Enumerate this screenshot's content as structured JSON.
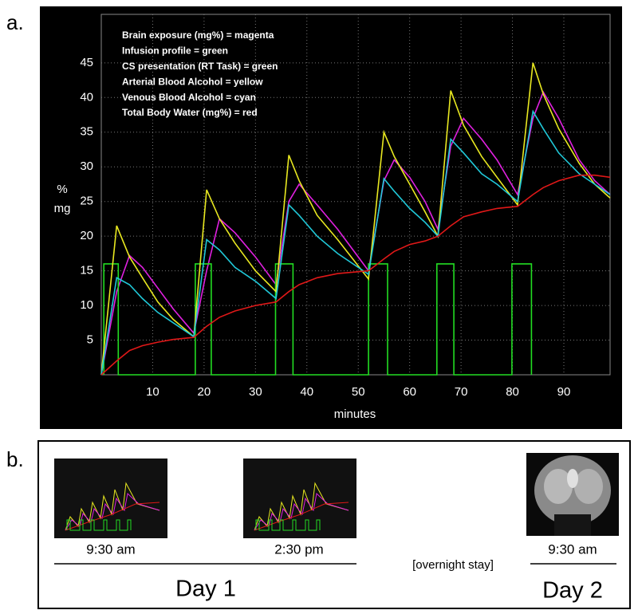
{
  "panel_a_label": "a.",
  "chart_data": {
    "type": "line",
    "xlabel": "minutes",
    "ylabel": [
      "%",
      "mg"
    ],
    "annotations": [
      "Infusion profile = green"
    ],
    "x": [
      0,
      3,
      5.5,
      8,
      11,
      14,
      18,
      20.5,
      23,
      26,
      30,
      34,
      36.5,
      38.5,
      42,
      46,
      52,
      55,
      57,
      60,
      63,
      65.5,
      68,
      70.5,
      74,
      77,
      81,
      84,
      86,
      89,
      93,
      96,
      99
    ],
    "series": [
      {
        "name": "Brain exposure (mg%) = magenta",
        "color": "#e020e0",
        "values": [
          0,
          12,
          17.2,
          15.5,
          12.5,
          9.5,
          6,
          15,
          22.5,
          20.5,
          17,
          13,
          25,
          27.5,
          24.5,
          21,
          15,
          28,
          31,
          28.5,
          25,
          21,
          33,
          37,
          34,
          31,
          26,
          37,
          40.8,
          37,
          31,
          28,
          26
        ]
      },
      {
        "name": "CS presentation (RT Task) = green",
        "color": "#22dd22",
        "x": [
          0.5,
          0.5,
          3.3,
          3.3,
          18.3,
          18.3,
          21.4,
          21.4,
          33.9,
          33.9,
          37.3,
          37.3,
          52,
          52,
          55.7,
          55.7,
          65.3,
          65.3,
          68.6,
          68.6,
          79.9,
          79.9,
          83.7,
          83.7
        ],
        "values": [
          0,
          16,
          16,
          0,
          0,
          16,
          16,
          0,
          0,
          16,
          16,
          0,
          0,
          16,
          16,
          0,
          0,
          16,
          16,
          0,
          0,
          16,
          16,
          0
        ]
      },
      {
        "name": "Arterial Blood Alcohol = yellow",
        "color": "#e8e820",
        "values": [
          0,
          21.5,
          17,
          14,
          10.5,
          8,
          5.5,
          26.7,
          22.5,
          19,
          15,
          12,
          31.7,
          28,
          23,
          19.5,
          13.8,
          35,
          31.5,
          27.5,
          23.5,
          20,
          41,
          36,
          31.5,
          28.5,
          24.5,
          45,
          40.5,
          35.5,
          30.5,
          27.5,
          25.5
        ]
      },
      {
        "name": "Venous Blood Alcohol = cyan",
        "color": "#20c8d8",
        "values": [
          0,
          14,
          13,
          11,
          9,
          7.5,
          5.5,
          19.5,
          18,
          15.5,
          13.5,
          11,
          24.5,
          23,
          20,
          17.5,
          14.5,
          28.3,
          26.5,
          24,
          22,
          20,
          34,
          32,
          29,
          27.5,
          25,
          38,
          35.5,
          32,
          29,
          27.5,
          26
        ]
      },
      {
        "name": "Total Body Water (mg%) = red",
        "color": "#e01818",
        "values": [
          0,
          2,
          3.5,
          4.2,
          4.7,
          5.1,
          5.4,
          7,
          8.3,
          9.2,
          10,
          10.5,
          12,
          13,
          14,
          14.6,
          15,
          16.7,
          17.8,
          18.8,
          19.3,
          20,
          21.5,
          22.8,
          23.5,
          24,
          24.3,
          26,
          27,
          28,
          28.8,
          28.8,
          28.5
        ]
      }
    ],
    "xlim": [
      0,
      99
    ],
    "ylim": [
      0,
      52
    ],
    "xticks": [
      10,
      20,
      30,
      40,
      50,
      60,
      70,
      80,
      90
    ],
    "yticks": [
      5,
      10,
      15,
      20,
      25,
      30,
      35,
      40,
      45
    ],
    "grid": true
  },
  "panel_b": {
    "label": "b.",
    "day1": {
      "times": [
        "9:30 am",
        "2:30 pm"
      ],
      "label": "Day 1"
    },
    "overnight": "[overnight stay]",
    "day2": {
      "time": "9:30 am",
      "label": "Day 2"
    }
  }
}
